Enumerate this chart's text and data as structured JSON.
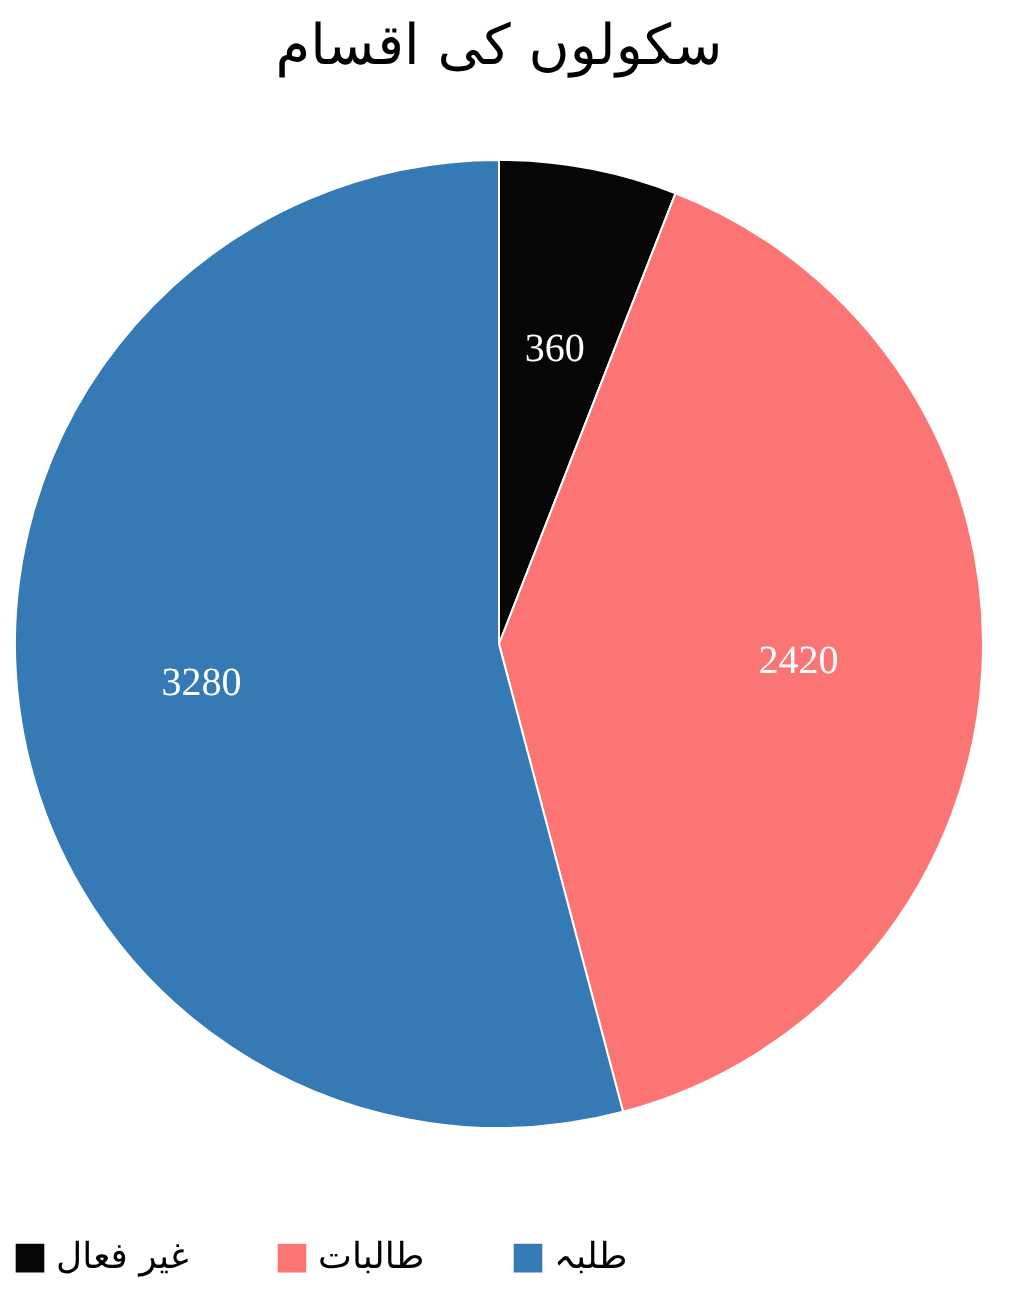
{
  "chart_data": {
    "type": "pie",
    "title": "سکولوں کی اقسام",
    "categories": [
      "غیر فعال",
      "طالبات",
      "طلبہ"
    ],
    "values": [
      360,
      2420,
      3280
    ],
    "colors": [
      "#060606",
      "#fb7575",
      "#3579b5"
    ],
    "data_labels": true,
    "legend": "bottom"
  }
}
